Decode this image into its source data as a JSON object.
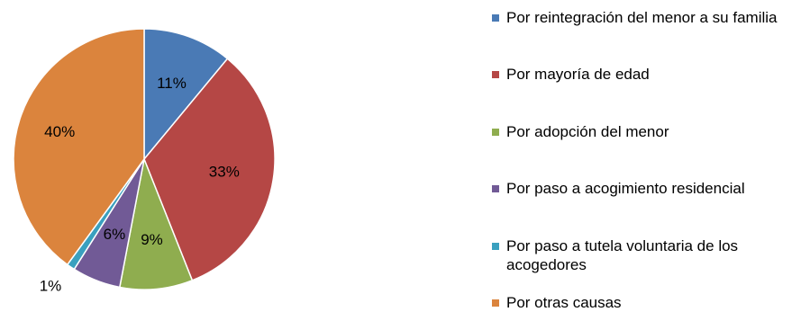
{
  "chart_data": {
    "type": "pie",
    "title": "",
    "legend_position": "right",
    "slices": [
      {
        "name": "Por reintegración del menor a su familia",
        "value": 11,
        "label": "11%",
        "color": "#4a7ab5"
      },
      {
        "name": "Por mayoría de edad",
        "value": 33,
        "label": "33%",
        "color": "#b54745"
      },
      {
        "name": "Por adopción del menor",
        "value": 9,
        "label": "9%",
        "color": "#8fad4f"
      },
      {
        "name": "Por paso a acogimiento residencial",
        "value": 6,
        "label": "6%",
        "color": "#715a96"
      },
      {
        "name": "Por paso a tutela voluntaria de los acogedores",
        "value": 1,
        "label": "1%",
        "color": "#3aa0bf"
      },
      {
        "name": "Por otras causas",
        "value": 40,
        "label": "40%",
        "color": "#db843d"
      }
    ]
  }
}
